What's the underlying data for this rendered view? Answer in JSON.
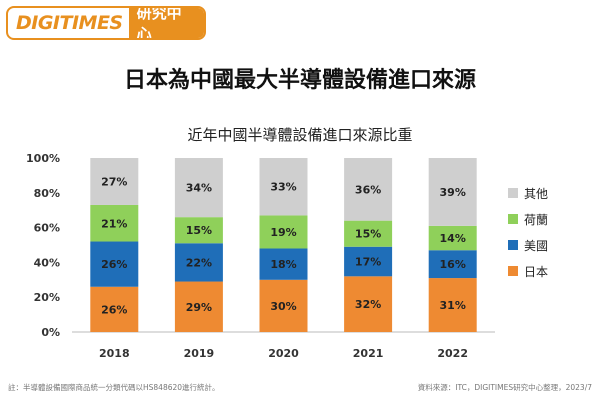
{
  "logo": {
    "brand": "DIGITIMES",
    "unit": "研究中心"
  },
  "page_title": "日本為中國最大半導體設備進口來源",
  "footnote": "註：半導體設備國際商品統一分類代碼以HS848620進行統計。",
  "source": "資料來源：ITC，DIGITIMES研究中心整理，2023/7",
  "colors": {
    "brand": "#e8901f"
  },
  "chart_data": {
    "type": "bar",
    "stacked": true,
    "title": "近年中國半導體設備進口來源比重",
    "xlabel": "",
    "ylabel": "",
    "ylim": [
      0,
      100
    ],
    "yticks": [
      "0%",
      "20%",
      "40%",
      "60%",
      "80%",
      "100%"
    ],
    "categories": [
      "2018",
      "2019",
      "2020",
      "2021",
      "2022"
    ],
    "series": [
      {
        "name": "日本",
        "color": "#ee8a32",
        "values": [
          26,
          29,
          30,
          32,
          31
        ],
        "labels": [
          "26%",
          "29%",
          "30%",
          "32%",
          "31%"
        ]
      },
      {
        "name": "美國",
        "color": "#1f6eb8",
        "values": [
          26,
          22,
          18,
          17,
          16
        ],
        "labels": [
          "26%",
          "22%",
          "18%",
          "17%",
          "16%"
        ]
      },
      {
        "name": "荷蘭",
        "color": "#8fd05a",
        "values": [
          21,
          15,
          19,
          15,
          14
        ],
        "labels": [
          "21%",
          "15%",
          "19%",
          "15%",
          "14%"
        ]
      },
      {
        "name": "其他",
        "color": "#cfcfcf",
        "values": [
          27,
          34,
          33,
          36,
          39
        ],
        "labels": [
          "27%",
          "34%",
          "33%",
          "36%",
          "39%"
        ]
      }
    ],
    "legend_order": [
      "其他",
      "荷蘭",
      "美國",
      "日本"
    ],
    "legend_position": "right"
  }
}
